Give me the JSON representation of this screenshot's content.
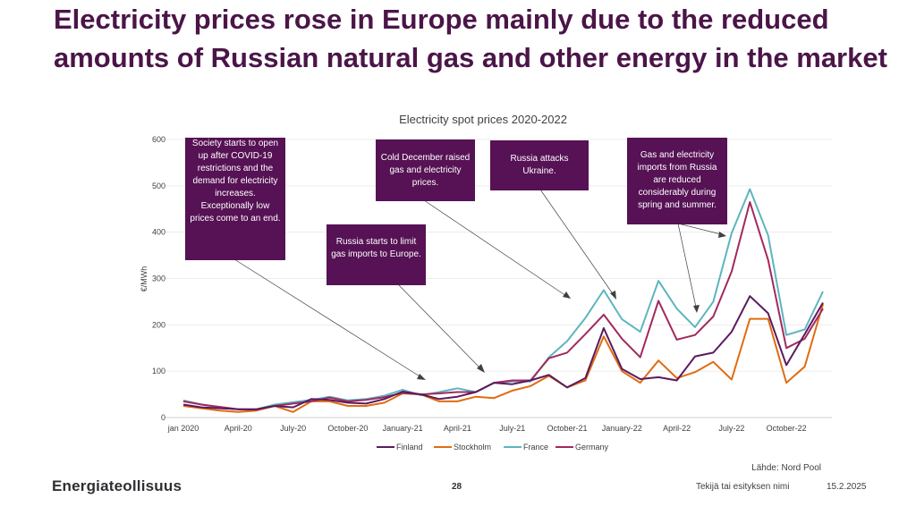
{
  "slide": {
    "title": "Electricity prices rose in Europe mainly due to the reduced amounts of Russian natural gas and other energy in the market",
    "source": "Lähde: Nord Pool",
    "logo_text": "Energiateollisuus",
    "page_number": "28",
    "footer_name": "Tekijä tai esityksen nimi",
    "footer_date": "15.2.2025"
  },
  "annotations": [
    {
      "text": "Society starts to open up after COVID-19 restrictions and the demand for electricity increases. Exceptionally low prices come to an end."
    },
    {
      "text": "Russia starts to limit gas imports to Europe."
    },
    {
      "text": "Cold December raised gas and electricity prices."
    },
    {
      "text": "Russia attacks Ukraine."
    },
    {
      "text": "Gas and electricity imports from Russia are reduced considerably during spring and summer."
    }
  ],
  "colors": {
    "Finland": "#5a1a5e",
    "Stockholm": "#e06c10",
    "France": "#5db5bf",
    "Germany": "#a3285f",
    "annotation_bg": "#561254",
    "title": "#4b1548"
  },
  "chart_data": {
    "type": "line",
    "title": "Electricity spot prices 2020-2022",
    "xlabel": "",
    "ylabel": "€/MWh",
    "ylim": [
      0,
      600
    ],
    "yticks": [
      0,
      100,
      200,
      300,
      400,
      500,
      600
    ],
    "x_tick_labels": [
      {
        "index": 0,
        "label": "jan 2020"
      },
      {
        "index": 3,
        "label": "April-20"
      },
      {
        "index": 6,
        "label": "July-20"
      },
      {
        "index": 9,
        "label": "October-20"
      },
      {
        "index": 12,
        "label": "January-21"
      },
      {
        "index": 15,
        "label": "April-21"
      },
      {
        "index": 18,
        "label": "July-21"
      },
      {
        "index": 21,
        "label": "October-21"
      },
      {
        "index": 24,
        "label": "January-22"
      },
      {
        "index": 27,
        "label": "April-22"
      },
      {
        "index": 30,
        "label": "July-22"
      },
      {
        "index": 33,
        "label": "October-22"
      }
    ],
    "x": [
      "2020-01",
      "2020-02",
      "2020-03",
      "2020-04",
      "2020-05",
      "2020-06",
      "2020-07",
      "2020-08",
      "2020-09",
      "2020-10",
      "2020-11",
      "2020-12",
      "2021-01",
      "2021-02",
      "2021-03",
      "2021-04",
      "2021-05",
      "2021-06",
      "2021-07",
      "2021-08",
      "2021-09",
      "2021-10",
      "2021-11",
      "2021-12",
      "2022-01",
      "2022-02",
      "2022-03",
      "2022-04",
      "2022-05",
      "2022-06",
      "2022-07",
      "2022-08",
      "2022-09",
      "2022-10",
      "2022-11",
      "2022-12"
    ],
    "series": [
      {
        "name": "Finland",
        "values": [
          28,
          22,
          20,
          18,
          18,
          25,
          22,
          40,
          38,
          32,
          30,
          40,
          56,
          50,
          40,
          45,
          55,
          75,
          72,
          80,
          92,
          65,
          85,
          193,
          105,
          83,
          87,
          80,
          132,
          140,
          185,
          262,
          225,
          113,
          180,
          248
        ]
      },
      {
        "name": "Stockholm",
        "values": [
          25,
          20,
          15,
          12,
          15,
          25,
          12,
          35,
          35,
          25,
          25,
          32,
          52,
          50,
          35,
          35,
          45,
          42,
          58,
          68,
          90,
          65,
          80,
          175,
          100,
          75,
          123,
          85,
          98,
          120,
          82,
          213,
          213,
          75,
          110,
          245
        ]
      },
      {
        "name": "France",
        "values": [
          37,
          28,
          22,
          18,
          18,
          28,
          33,
          38,
          45,
          37,
          40,
          47,
          60,
          48,
          55,
          63,
          55,
          75,
          78,
          78,
          130,
          165,
          215,
          275,
          212,
          185,
          295,
          235,
          195,
          250,
          398,
          493,
          393,
          178,
          190,
          272
        ]
      },
      {
        "name": "Germany",
        "values": [
          35,
          28,
          23,
          18,
          17,
          25,
          30,
          35,
          43,
          35,
          38,
          44,
          53,
          50,
          52,
          55,
          55,
          75,
          80,
          80,
          128,
          140,
          180,
          222,
          170,
          130,
          252,
          168,
          178,
          218,
          315,
          465,
          340,
          150,
          170,
          235
        ]
      }
    ]
  }
}
